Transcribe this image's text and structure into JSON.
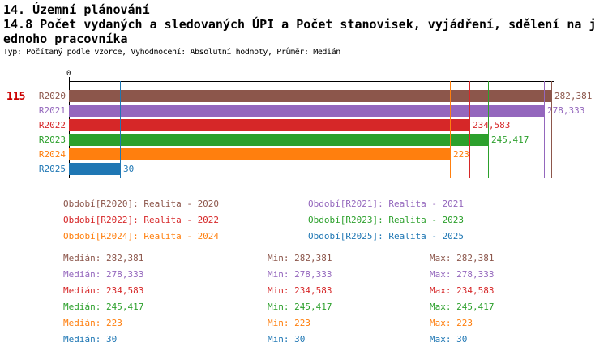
{
  "header": {
    "title": "14. Územní plánování",
    "subtitle": "14.8 Počet vydaných a sledovaných ÚPI a Počet stanovisek, vyjádření, sdělení na jednoho pracovníka",
    "meta": "Typ: Počítaný podle vzorce, Vyhodnocení: Absolutní hodnoty, Průměr: Medián"
  },
  "indicator_number": "115",
  "indicator_number_color": "#cc0000",
  "chart_data": {
    "type": "bar",
    "orientation": "horizontal",
    "title": "14.8 Počet vydaných a sledovaných ÚPI a Počet stanovisek, vyjádření, sdělení na jednoho pracovníka",
    "axis_origin_label": "0",
    "xlim": [
      0,
      282.381
    ],
    "grid": false,
    "legend_position": "bottom",
    "categories": [
      "R2020",
      "R2021",
      "R2022",
      "R2023",
      "R2024",
      "R2025"
    ],
    "values": [
      282.381,
      278.333,
      234.583,
      245.417,
      223,
      30
    ],
    "value_labels": [
      "282,381",
      "278,333",
      "234,583",
      "245,417",
      "223",
      "30"
    ],
    "colors": [
      "#8c564b",
      "#9467bd",
      "#d62728",
      "#2ca02c",
      "#ff7f0e",
      "#1f77b4"
    ],
    "median_marker_lines": true
  },
  "legend": {
    "items": [
      {
        "label": "Období[R2020]: Realita - 2020",
        "color": "#8c564b"
      },
      {
        "label": "Období[R2021]: Realita - 2021",
        "color": "#9467bd"
      },
      {
        "label": "Období[R2022]: Realita - 2022",
        "color": "#d62728"
      },
      {
        "label": "Období[R2023]: Realita - 2023",
        "color": "#2ca02c"
      },
      {
        "label": "Období[R2024]: Realita - 2024",
        "color": "#ff7f0e"
      },
      {
        "label": "Období[R2025]: Realita - 2025",
        "color": "#1f77b4"
      }
    ]
  },
  "stats": {
    "labels": {
      "median": "Medián",
      "min": "Min",
      "max": "Max"
    },
    "rows": [
      {
        "color": "#8c564b",
        "median": "282,381",
        "min": "282,381",
        "max": "282,381"
      },
      {
        "color": "#9467bd",
        "median": "278,333",
        "min": "278,333",
        "max": "278,333"
      },
      {
        "color": "#d62728",
        "median": "234,583",
        "min": "234,583",
        "max": "234,583"
      },
      {
        "color": "#2ca02c",
        "median": "245,417",
        "min": "245,417",
        "max": "245,417"
      },
      {
        "color": "#ff7f0e",
        "median": "223",
        "min": "223",
        "max": "223"
      },
      {
        "color": "#1f77b4",
        "median": "30",
        "min": "30",
        "max": "30"
      }
    ]
  }
}
